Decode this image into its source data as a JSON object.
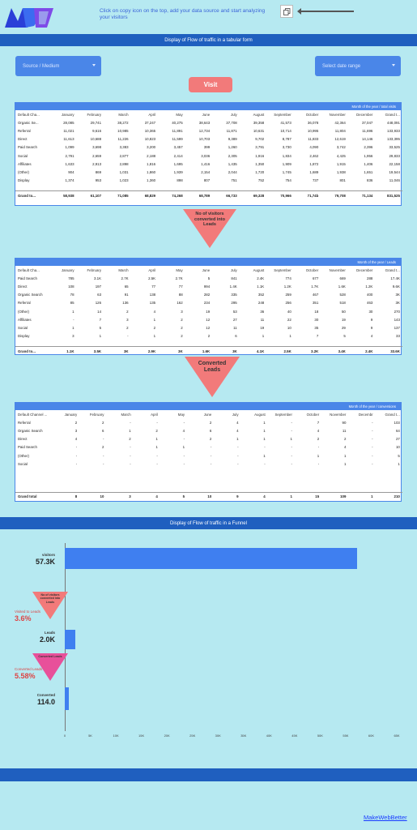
{
  "header": {
    "instruction": "Click on copy icon on the top, add your data source and start analyzing your visitors"
  },
  "section_titles": {
    "tabular": "Display of Flow of traffic in a tabular form",
    "funnel": "Display of Flow of traffic in a Funnel"
  },
  "filters": {
    "source_medium": "Source / Medium",
    "date_range": "Select date range"
  },
  "visit_button": "Visit",
  "colors": {
    "band": "#1f5fbf",
    "accent": "#4a86e8",
    "coral": "#f27a7a",
    "background": "#b6e9f1"
  },
  "table1": {
    "caption": "Month of the year / total visits",
    "headers": [
      "Default Cha...",
      "January",
      "February",
      "March",
      "April",
      "May",
      "June",
      "July",
      "August",
      "September",
      "October",
      "November",
      "December",
      "Grand t..."
    ],
    "rows": [
      [
        "Organic Se...",
        "28,085",
        "29,741",
        "38,272",
        "37,247",
        "40,275",
        "38,643",
        "37,708",
        "39,358",
        "41,573",
        "36,078",
        "42,364",
        "37,047",
        "448,091"
      ],
      [
        "Referral",
        "11,021",
        "9,616",
        "10,985",
        "10,365",
        "11,891",
        "12,734",
        "11,871",
        "10,631",
        "10,714",
        "10,995",
        "11,804",
        "11,696",
        "133,933"
      ],
      [
        "Direct",
        "11,613",
        "10,688",
        "11,226",
        "10,823",
        "11,599",
        "10,703",
        "9,389",
        "9,702",
        "8,787",
        "11,833",
        "12,619",
        "14,146",
        "133,395"
      ],
      [
        "Paid Search",
        "1,099",
        "3,698",
        "3,383",
        "3,200",
        "3,457",
        "399",
        "1,260",
        "3,791",
        "3,730",
        "4,090",
        "3,742",
        "2,396",
        "33,525"
      ],
      [
        "Social",
        "2,791",
        "2,659",
        "2,877",
        "2,188",
        "2,414",
        "3,036",
        "2,305",
        "1,916",
        "1,834",
        "2,462",
        "4,425",
        "1,956",
        "29,833"
      ],
      [
        "Affiliates",
        "1,633",
        "2,913",
        "2,898",
        "1,816",
        "1,695",
        "1,416",
        "1,435",
        "1,350",
        "1,909",
        "1,872",
        "1,915",
        "1,406",
        "22,158"
      ],
      [
        "(Other)",
        "904",
        "869",
        "1,031",
        "1,860",
        "1,939",
        "2,154",
        "2,044",
        "1,720",
        "1,745",
        "1,689",
        "1,938",
        "1,651",
        "19,544"
      ],
      [
        "Display",
        "1,374",
        "953",
        "1,023",
        "1,360",
        "898",
        "807",
        "751",
        "752",
        "754",
        "737",
        "801",
        "836",
        "11,046"
      ]
    ],
    "total": [
      "Grand to...",
      "58,938",
      "61,107",
      "71,085",
      "68,829",
      "74,268",
      "68,789",
      "66,733",
      "69,328",
      "70,966",
      "71,74b",
      "79,708",
      "71,134",
      "831,525"
    ]
  },
  "triangle1": "No of visitors converted into Leads",
  "table2": {
    "caption": "Month of the year / Leads",
    "headers": [
      "Default Cha...",
      "January",
      "February",
      "March",
      "April",
      "May",
      "June",
      "July",
      "August",
      "September",
      "October",
      "November",
      "December",
      "Grand t..."
    ],
    "rows": [
      [
        "Paid Search",
        "785",
        "3.1K",
        "2.7K",
        "2.5K",
        "2.7K",
        "5",
        "841",
        "2.4K",
        "774",
        "677",
        "669",
        "288",
        "17.4K"
      ],
      [
        "Direct",
        "108",
        "197",
        "65",
        "77",
        "77",
        "994",
        "1.4K",
        "1.1K",
        "1.2K",
        "1.7K",
        "1.6K",
        "1.2K",
        "9.6K"
      ],
      [
        "Organic Search",
        "78",
        "63",
        "91",
        "138",
        "88",
        "282",
        "335",
        "352",
        "259",
        "467",
        "528",
        "400",
        "3K"
      ],
      [
        "Referral",
        "85",
        "126",
        "136",
        "135",
        "162",
        "234",
        "295",
        "248",
        "256",
        "351",
        "518",
        "463",
        "3K"
      ],
      [
        "(Other)",
        "1",
        "14",
        "2",
        "4",
        "3",
        "19",
        "53",
        "36",
        "40",
        "18",
        "50",
        "30",
        "270"
      ],
      [
        "Affiliates",
        "-",
        "7",
        "3",
        "1",
        "2",
        "12",
        "27",
        "11",
        "22",
        "30",
        "19",
        "9",
        "143"
      ],
      [
        "Social",
        "1",
        "5",
        "2",
        "2",
        "2",
        "12",
        "11",
        "19",
        "10",
        "35",
        "29",
        "9",
        "137"
      ],
      [
        "Display",
        "3",
        "1",
        "-",
        "1",
        "2",
        "2",
        "6",
        "1",
        "1",
        "7",
        "5",
        "4",
        "33"
      ]
    ],
    "total": [
      "Grand to...",
      "1.1K",
      "3.5K",
      "3K",
      "2.9K",
      "3K",
      "1.6K",
      "3K",
      "4.1K",
      "2.5K",
      "3.2K",
      "3.4K",
      "2.4K",
      "33.6K"
    ]
  },
  "triangle2": "Converted Leads",
  "table3": {
    "caption": "Month of the year / conversions",
    "headers": [
      "Default Channel ...",
      "January",
      "February",
      "March",
      "April",
      "May",
      "June",
      "July",
      "August",
      "September",
      "October",
      "November",
      "Decembr",
      "Grand t..."
    ],
    "rows": [
      [
        "Referral",
        "2",
        "2",
        "-",
        "-",
        "-",
        "2",
        "4",
        "1",
        "-",
        "7",
        "90",
        "-",
        "103"
      ],
      [
        "Organic Search",
        "3",
        "6",
        "1",
        "2",
        "4",
        "6",
        "4",
        "1",
        "-",
        "4",
        "11",
        "-",
        "64"
      ],
      [
        "Direct",
        "4",
        "-",
        "2",
        "1",
        "-",
        "2",
        "1",
        "1",
        "1",
        "2",
        "2",
        "-",
        "27"
      ],
      [
        "Paid Search",
        "-",
        "2",
        "-",
        "1",
        "1",
        "-",
        "-",
        "-",
        "-",
        "-",
        "4",
        "-",
        "10"
      ],
      [
        "(Other)",
        "-",
        "-",
        "-",
        "-",
        "-",
        "-",
        "-",
        "1",
        "-",
        "1",
        "1",
        "-",
        "5"
      ],
      [
        "Social",
        "-",
        "-",
        "-",
        "-",
        "-",
        "-",
        "-",
        "-",
        "-",
        "-",
        "1",
        "-",
        "1"
      ]
    ],
    "total": [
      "Grand total",
      "8",
      "10",
      "3",
      "4",
      "5",
      "10",
      "9",
      "4",
      "1",
      "15",
      "109",
      "1",
      "210"
    ]
  },
  "chart_data": {
    "type": "bar",
    "orientation": "horizontal",
    "categories": [
      "visitors",
      "Leads",
      "Converted"
    ],
    "values": [
      57300,
      2000,
      114
    ],
    "value_labels": [
      "57.3K",
      "2.0K",
      "114.0"
    ],
    "x_ticks": [
      "0",
      "5K",
      "10K",
      "15K",
      "20K",
      "25K",
      "30K",
      "35K",
      "40K",
      "45K",
      "50K",
      "55K",
      "60K",
      "65K"
    ],
    "xlim": [
      0,
      65000
    ],
    "rates": [
      {
        "label": "Visited to Leads",
        "value": "3.6%",
        "triangle": "No of visitors converted into Leads"
      },
      {
        "label": "Converted Leads",
        "value": "5.58%",
        "triangle": "Converted Leads"
      }
    ]
  },
  "footer": {
    "link": "MakeWebBetter"
  }
}
